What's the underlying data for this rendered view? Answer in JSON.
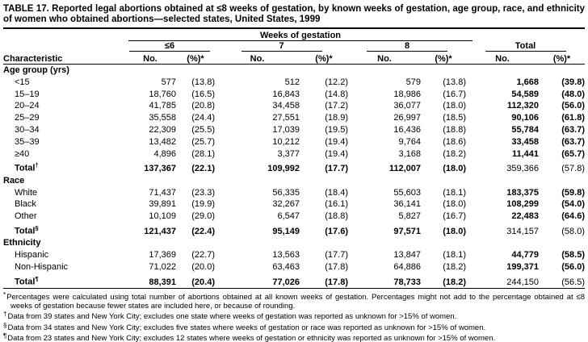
{
  "title": "TABLE 17. Reported legal abortions obtained at ≤8 weeks of gestation, by known weeks of gestation, age group, race, and ethnicity of women who obtained abortions—selected states, United States, 1999",
  "header": {
    "weeks_span": "Weeks of gestation",
    "characteristic": "Characteristic",
    "groups": [
      {
        "label": "≤6"
      },
      {
        "label": "7"
      },
      {
        "label": "8"
      },
      {
        "label": "Total"
      }
    ],
    "no": "No.",
    "pct": "(%)*"
  },
  "sections": [
    {
      "name": "Age group (yrs)",
      "rows": [
        {
          "label": "<15",
          "cells": [
            "577",
            "(13.8)",
            "512",
            "(12.2)",
            "579",
            "(13.8)",
            "1,668",
            "(39.8)"
          ]
        },
        {
          "label": "15–19",
          "cells": [
            "18,760",
            "(16.5)",
            "16,843",
            "(14.8)",
            "18,986",
            "(16.7)",
            "54,589",
            "(48.0)"
          ]
        },
        {
          "label": "20–24",
          "cells": [
            "41,785",
            "(20.8)",
            "34,458",
            "(17.2)",
            "36,077",
            "(18.0)",
            "112,320",
            "(56.0)"
          ]
        },
        {
          "label": "25–29",
          "cells": [
            "35,558",
            "(24.4)",
            "27,551",
            "(18.9)",
            "26,997",
            "(18.5)",
            "90,106",
            "(61.8)"
          ]
        },
        {
          "label": "30–34",
          "cells": [
            "22,309",
            "(25.5)",
            "17,039",
            "(19.5)",
            "16,436",
            "(18.8)",
            "55,784",
            "(63.7)"
          ]
        },
        {
          "label": "35–39",
          "cells": [
            "13,482",
            "(25.7)",
            "10,212",
            "(19.4)",
            "9,764",
            "(18.6)",
            "33,458",
            "(63.7)"
          ]
        },
        {
          "label": "≥40",
          "cells": [
            "4,896",
            "(28.1)",
            "3,377",
            "(19.4)",
            "3,168",
            "(18.2)",
            "11,441",
            "(65.7)"
          ]
        },
        {
          "label": "Total",
          "sup": "†",
          "cells": [
            "137,367",
            "(22.1)",
            "109,992",
            "(17.7)",
            "112,007",
            "(18.0)",
            "359,366",
            "(57.8)"
          ]
        }
      ]
    },
    {
      "name": "Race",
      "rows": [
        {
          "label": "White",
          "cells": [
            "71,437",
            "(23.3)",
            "56,335",
            "(18.4)",
            "55,603",
            "(18.1)",
            "183,375",
            "(59.8)"
          ]
        },
        {
          "label": "Black",
          "cells": [
            "39,891",
            "(19.9)",
            "32,267",
            "(16.1)",
            "36,141",
            "(18.0)",
            "108,299",
            "(54.0)"
          ]
        },
        {
          "label": "Other",
          "cells": [
            "10,109",
            "(29.0)",
            "6,547",
            "(18.8)",
            "5,827",
            "(16.7)",
            "22,483",
            "(64.6)"
          ]
        },
        {
          "label": "Total",
          "sup": "§",
          "cells": [
            "121,437",
            "(22.4)",
            "95,149",
            "(17.6)",
            "97,571",
            "(18.0)",
            "314,157",
            "(58.0)"
          ]
        }
      ]
    },
    {
      "name": "Ethnicity",
      "rows": [
        {
          "label": "Hispanic",
          "cells": [
            "17,369",
            "(22.7)",
            "13,563",
            "(17.7)",
            "13,847",
            "(18.1)",
            "44,779",
            "(58.5)"
          ]
        },
        {
          "label": "Non-Hispanic",
          "cells": [
            "71,022",
            "(20.0)",
            "63,463",
            "(17.8)",
            "64,886",
            "(18.2)",
            "199,371",
            "(56.0)"
          ]
        },
        {
          "label": "Total",
          "sup": "¶",
          "cells": [
            "88,391",
            "(20.4)",
            "77,026",
            "(17.8)",
            "78,733",
            "(18.2)",
            "244,150",
            "(56.5)"
          ]
        }
      ]
    }
  ],
  "footnotes": [
    {
      "marker": "*",
      "text": "Percentages were calculated using total number of abortions obtained at all known weeks of gestation. Percentages might not add to the percentage obtained at ≤8 weeks of gestation because fewer states are included here, or because of rounding."
    },
    {
      "marker": "†",
      "text": "Data from 39 states and New York City; excludes one state where weeks of gestation was reported as unknown for >15% of women."
    },
    {
      "marker": "§",
      "text": "Data from 34 states and New York City; excludes five states where weeks of gestation or race was reported as unknown for >15% of women."
    },
    {
      "marker": "¶",
      "text": "Data from 23 states and New York City; excludes 12 states where weeks of gestation or ethnicity was reported as unknown for >15% of women."
    }
  ]
}
